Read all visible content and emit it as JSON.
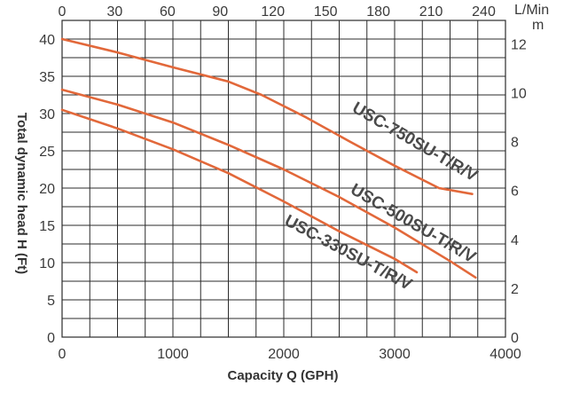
{
  "chart_data": {
    "type": "line",
    "xlabel": "Capacity Q (GPH)",
    "ylabel": "Total dynamic head H (Ft)",
    "x": {
      "ticks": [
        0,
        1000,
        2000,
        3000,
        4000
      ],
      "tick_labels": [
        "0",
        "1000",
        "2000",
        "3000",
        "4000"
      ],
      "range": [
        0,
        4000
      ],
      "minor_step": 250
    },
    "y": {
      "ticks": [
        0,
        5,
        10,
        15,
        20,
        25,
        30,
        35,
        40
      ],
      "tick_labels": [
        "0",
        "5",
        "10",
        "15",
        "20",
        "25",
        "30",
        "35",
        "40"
      ],
      "range": [
        0,
        42.5
      ],
      "minor_step": 2.5
    },
    "x_top": {
      "unit": "L/Min",
      "ticks": [
        0,
        30,
        60,
        90,
        120,
        150,
        180,
        210,
        240
      ],
      "tick_labels": [
        "0",
        "30",
        "60",
        "90",
        "120",
        "150",
        "180",
        "210",
        "240"
      ]
    },
    "y_right": {
      "unit": "m",
      "ticks": [
        0,
        2,
        4,
        6,
        8,
        10,
        12
      ],
      "tick_labels": [
        "0",
        "2",
        "4",
        "6",
        "8",
        "10",
        "12"
      ]
    },
    "series": [
      {
        "name": "USC-750SU-T/R/V",
        "color": "#e2683a",
        "x": [
          0,
          500,
          1000,
          1500,
          1800,
          2200,
          2600,
          3000,
          3400,
          3700
        ],
        "y": [
          40,
          38.2,
          36.2,
          34.3,
          32.5,
          29.5,
          26.2,
          23,
          20,
          19.2
        ]
      },
      {
        "name": "USC-500SU-T/R/V",
        "color": "#e2683a",
        "x": [
          0,
          500,
          1000,
          1500,
          2000,
          2500,
          3000,
          3500,
          3730
        ],
        "y": [
          33.2,
          31.2,
          28.8,
          25.8,
          22.5,
          18.8,
          14.7,
          10.2,
          8
        ]
      },
      {
        "name": "USC-330SU-T/R/V",
        "color": "#e2683a",
        "x": [
          0,
          500,
          1000,
          1500,
          2000,
          2500,
          3000,
          3200
        ],
        "y": [
          30.5,
          28,
          25.2,
          22,
          18.2,
          14.2,
          10.5,
          8.7
        ]
      }
    ],
    "grid": true
  }
}
